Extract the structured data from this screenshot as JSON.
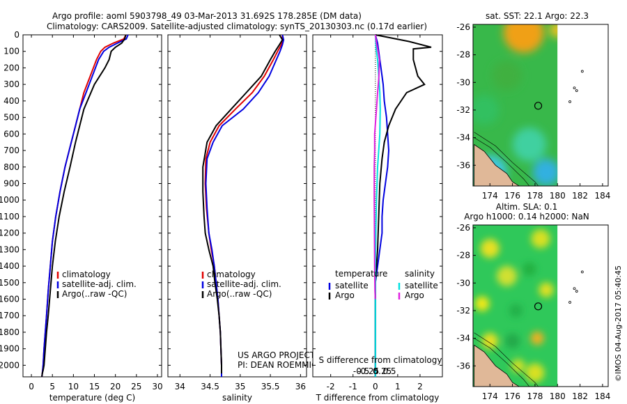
{
  "header": {
    "line1": "Argo profile: aoml 5903798_49 03-Mar-2013 31.692S 178.285E (DM data)",
    "line2": "Climatology: CARS2009. Satellite-adjusted climatology: synTS_20130303.nc (0.17d earlier)"
  },
  "colors": {
    "climatology": "#e00000",
    "satellite": "#0000e0",
    "argo": "#000000",
    "salinity_satellite": "#00e0e0",
    "salinity_argo": "#e020e0"
  },
  "chart_data": [
    {
      "type": "line",
      "name": "temperature-profile",
      "xlabel": "temperature (deg C)",
      "ylabel": "",
      "xlim": [
        -2,
        31
      ],
      "ylim": [
        2070,
        0
      ],
      "xticks": [
        "0",
        "5",
        "10",
        "15",
        "20",
        "25",
        "30"
      ],
      "xtick_values": [
        0,
        5,
        10,
        15,
        20,
        25,
        30
      ],
      "yticks": [
        "0",
        "100",
        "200",
        "300",
        "400",
        "500",
        "600",
        "700",
        "800",
        "900",
        "1000",
        "1100",
        "1200",
        "1300",
        "1400",
        "1500",
        "1600",
        "1700",
        "1800",
        "1900",
        "2000"
      ],
      "ytick_values": [
        0,
        100,
        200,
        300,
        400,
        500,
        600,
        700,
        800,
        900,
        1000,
        1100,
        1200,
        1300,
        1400,
        1500,
        1600,
        1700,
        1800,
        1900,
        2000
      ],
      "legend": [
        "climatology",
        "satellite-adj. clim.",
        "Argo(..raw -QC)"
      ],
      "legend_position": "lower-center",
      "series": [
        {
          "name": "climatology",
          "x": [
            22.5,
            22.0,
            19.5,
            17.5,
            16.5,
            15.5,
            14.0,
            12.5,
            11.5,
            10.5,
            9.5,
            8.0,
            6.8,
            5.8,
            5.0,
            4.5,
            4.0,
            3.6,
            3.3,
            3.0,
            2.8,
            2.6,
            2.5
          ],
          "y": [
            0,
            25,
            50,
            75,
            100,
            150,
            250,
            350,
            450,
            550,
            650,
            800,
            950,
            1100,
            1250,
            1400,
            1550,
            1700,
            1800,
            1900,
            2000,
            2050,
            2070
          ]
        },
        {
          "name": "satellite-adj. clim.",
          "x": [
            23.0,
            22.6,
            20.5,
            18.5,
            17.2,
            16.0,
            14.5,
            13.0,
            11.5,
            10.5,
            9.5,
            8.0,
            6.8,
            5.8,
            5.0,
            4.5,
            4.0,
            3.6,
            3.3,
            3.0,
            2.8,
            2.6,
            2.5
          ],
          "y": [
            0,
            25,
            50,
            75,
            100,
            150,
            250,
            350,
            450,
            550,
            650,
            800,
            950,
            1100,
            1250,
            1400,
            1550,
            1700,
            1800,
            1900,
            2000,
            2050,
            2070
          ]
        },
        {
          "name": "Argo(..raw -QC)",
          "x": [
            22.5,
            22.2,
            21.5,
            20.0,
            19.0,
            18.5,
            17.5,
            15.0,
            12.5,
            11.5,
            10.5,
            9.2,
            7.8,
            6.6,
            5.7,
            5.0,
            4.5,
            4.0,
            3.6,
            3.3,
            3.0,
            2.8,
            2.6,
            2.5
          ],
          "y": [
            0,
            25,
            50,
            75,
            100,
            150,
            200,
            300,
            450,
            550,
            650,
            800,
            950,
            1100,
            1250,
            1400,
            1550,
            1700,
            1800,
            1900,
            2000,
            2030,
            2050,
            2070
          ]
        }
      ]
    },
    {
      "type": "line",
      "name": "salinity-profile",
      "xlabel": "salinity",
      "ylabel": "",
      "xlim": [
        33.8,
        36.1
      ],
      "ylim": [
        2070,
        0
      ],
      "xticks": [
        "34",
        "34.5",
        "35",
        "35.5",
        "36"
      ],
      "xtick_values": [
        34,
        34.5,
        35,
        35.5,
        36
      ],
      "legend": [
        "climatology",
        "satellite-adj. clim.",
        "Argo(..raw -QC)"
      ],
      "legend_position": "lower-center",
      "annotation": [
        "US ARGO PROJECT",
        "PI: DEAN ROEMMICH"
      ],
      "series": [
        {
          "name": "climatology",
          "x": [
            35.7,
            35.7,
            35.68,
            35.62,
            35.55,
            35.4,
            35.2,
            34.92,
            34.65,
            34.5,
            34.43,
            34.42,
            34.44,
            34.48,
            34.52,
            34.57,
            34.6,
            34.63,
            34.65,
            34.67,
            34.68,
            34.69,
            34.69,
            34.69
          ],
          "y": [
            0,
            30,
            60,
            100,
            150,
            250,
            350,
            450,
            550,
            650,
            750,
            900,
            1050,
            1200,
            1300,
            1400,
            1500,
            1600,
            1700,
            1800,
            1900,
            2000,
            2050,
            2070
          ]
        },
        {
          "name": "satellite-adj. clim.",
          "x": [
            35.7,
            35.72,
            35.7,
            35.66,
            35.6,
            35.48,
            35.3,
            35.05,
            34.7,
            34.55,
            34.45,
            34.43,
            34.45,
            34.48,
            34.53,
            34.57,
            34.6,
            34.63,
            34.65,
            34.67,
            34.68,
            34.69,
            34.69,
            34.69
          ],
          "y": [
            0,
            30,
            60,
            100,
            150,
            250,
            350,
            450,
            550,
            650,
            750,
            900,
            1050,
            1200,
            1300,
            1400,
            1500,
            1600,
            1700,
            1800,
            1900,
            2000,
            2050,
            2070
          ]
        },
        {
          "name": "Argo(..raw -QC)",
          "x": [
            35.65,
            35.7,
            35.65,
            35.58,
            35.5,
            35.35,
            35.1,
            34.85,
            34.6,
            34.45,
            34.38,
            34.38,
            34.4,
            34.42,
            34.48,
            34.55,
            34.58,
            34.62,
            34.65,
            34.67,
            34.68,
            34.69,
            34.69
          ],
          "y": [
            0,
            30,
            60,
            100,
            150,
            250,
            350,
            450,
            550,
            650,
            800,
            950,
            1100,
            1200,
            1300,
            1400,
            1500,
            1600,
            1700,
            1800,
            1900,
            2000,
            2050
          ]
        }
      ]
    },
    {
      "type": "line",
      "name": "difference-profile",
      "xlabel": "T difference from climatology",
      "xlabel_top": "S difference from climatology",
      "xlim": [
        -2.8,
        3.0
      ],
      "ylim": [
        2070,
        0
      ],
      "xticks": [
        "-2",
        "-1",
        "0",
        "1",
        "2"
      ],
      "xtick_values": [
        -2,
        -1,
        0,
        1,
        2
      ],
      "xticks_top": [
        "-0.5",
        "-0.25",
        "0",
        "0.25",
        "0.5"
      ],
      "xtick_top_values": [
        -0.5,
        -0.25,
        0,
        0.25,
        0.5
      ],
      "legend_temperature_title": "temperature",
      "legend_temperature": [
        "satellite",
        "Argo"
      ],
      "legend_salinity_title": "salinity",
      "legend_salinity": [
        "satellite",
        "Argo"
      ],
      "legend_position": "lower-center",
      "series": [
        {
          "name": "temperature satellite",
          "x": [
            0.0,
            0.1,
            0.15,
            0.25,
            0.35,
            0.4,
            0.5,
            0.55,
            0.6,
            0.55,
            0.45,
            0.35,
            0.3,
            0.3,
            0.2,
            0.1,
            0.0,
            0.0,
            0.0,
            0.0
          ],
          "y": [
            0,
            50,
            100,
            200,
            300,
            400,
            500,
            600,
            700,
            800,
            900,
            1000,
            1100,
            1200,
            1300,
            1400,
            1500,
            1700,
            1900,
            2070
          ]
        },
        {
          "name": "temperature Argo",
          "x": [
            0.0,
            1.5,
            2.5,
            1.7,
            1.7,
            1.9,
            2.2,
            1.4,
            0.9,
            0.6,
            0.4,
            0.3,
            0.2,
            0.15,
            0.1,
            0.0,
            0.0,
            0.0,
            0.0
          ],
          "y": [
            0,
            40,
            75,
            85,
            150,
            250,
            300,
            350,
            450,
            550,
            650,
            750,
            900,
            1100,
            1300,
            1500,
            1700,
            1900,
            2070
          ]
        },
        {
          "name": "salinity satellite",
          "x": [
            0.0,
            0.02,
            0.05,
            0.1,
            0.15,
            0.2,
            0.22,
            0.2,
            0.1,
            0.05,
            0.02,
            0.0,
            0.0,
            0.0,
            0.0
          ],
          "y": [
            0,
            50,
            100,
            150,
            250,
            350,
            450,
            600,
            800,
            1000,
            1200,
            1400,
            1600,
            1800,
            2070
          ]
        },
        {
          "name": "salinity Argo",
          "x": [
            0.0,
            0.05,
            0.12,
            0.18,
            0.16,
            0.1,
            0.05,
            -0.03,
            -0.03,
            -0.05,
            -0.05,
            -0.04,
            -0.03,
            -0.02,
            0.0
          ],
          "y": [
            0,
            50,
            100,
            150,
            250,
            350,
            450,
            600,
            700,
            800,
            1000,
            1200,
            1400,
            1550,
            1600
          ]
        }
      ]
    },
    {
      "type": "heatmap",
      "name": "sst-map",
      "title": "sat. SST: 22.1  Argo: 22.3",
      "xlim": [
        172.5,
        184.5
      ],
      "ylim": [
        -37.5,
        -25.8
      ],
      "xticks": [
        "174",
        "176",
        "178",
        "180",
        "182",
        "184"
      ],
      "xtick_values": [
        174,
        176,
        178,
        180,
        182,
        184
      ],
      "yticks": [
        "-26",
        "-28",
        "-30",
        "-32",
        "-34",
        "-36"
      ],
      "ytick_values": [
        -26,
        -28,
        -30,
        -32,
        -34,
        -36
      ],
      "profile_location": {
        "lon": 178.285,
        "lat": -31.692
      },
      "data_extent_lon": [
        172.5,
        180
      ],
      "blobs": [
        {
          "lon": 177,
          "lat": -26.4,
          "r": 3.0,
          "color": "#f0a018"
        },
        {
          "lon": 180,
          "lat": -26.2,
          "r": 1.2,
          "color": "#e8c020"
        },
        {
          "lon": 175.5,
          "lat": -29.5,
          "r": 2.2,
          "color": "#40b040"
        },
        {
          "lon": 173.5,
          "lat": -32,
          "r": 2.2,
          "color": "#30c060"
        },
        {
          "lon": 177.5,
          "lat": -34.5,
          "r": 2.5,
          "color": "#40d0a0"
        },
        {
          "lon": 174,
          "lat": -36.5,
          "r": 2.5,
          "color": "#40c8e0"
        },
        {
          "lon": 179,
          "lat": -36.5,
          "r": 2.0,
          "color": "#30b0e0"
        }
      ]
    },
    {
      "type": "heatmap",
      "name": "sla-map",
      "title": "Altim. SLA: 0.1",
      "subtitle": "Argo h1000: 0.14  h2000: NaN",
      "xlim": [
        172.5,
        184.5
      ],
      "ylim": [
        -37.5,
        -25.8
      ],
      "xticks": [
        "174",
        "176",
        "178",
        "180",
        "182",
        "184"
      ],
      "xtick_values": [
        174,
        176,
        178,
        180,
        182,
        184
      ],
      "yticks": [
        "-26",
        "-28",
        "-30",
        "-32",
        "-34",
        "-36"
      ],
      "ytick_values": [
        -26,
        -28,
        -30,
        -32,
        -34,
        -36
      ],
      "profile_location": {
        "lon": 178.285,
        "lat": -31.692
      },
      "data_extent_lon": [
        172.5,
        180
      ],
      "blobs": [
        {
          "lon": 174,
          "lat": -27.5,
          "r": 1.4,
          "color": "#e8e020"
        },
        {
          "lon": 178.5,
          "lat": -26.8,
          "r": 1.4,
          "color": "#d8e020"
        },
        {
          "lon": 175.5,
          "lat": -29.5,
          "r": 1.5,
          "color": "#d0e030"
        },
        {
          "lon": 177.5,
          "lat": -29,
          "r": 1.0,
          "color": "#20b040"
        },
        {
          "lon": 179,
          "lat": -30.5,
          "r": 1.1,
          "color": "#e0e020"
        },
        {
          "lon": 173.3,
          "lat": -31.5,
          "r": 1.1,
          "color": "#f0e818"
        },
        {
          "lon": 176.3,
          "lat": -32,
          "r": 1.0,
          "color": "#20b048"
        },
        {
          "lon": 174,
          "lat": -34.2,
          "r": 1.2,
          "color": "#e8e020"
        },
        {
          "lon": 176,
          "lat": -34.2,
          "r": 1.1,
          "color": "#20a848"
        },
        {
          "lon": 178.2,
          "lat": -34,
          "r": 1.0,
          "color": "#f0b020"
        },
        {
          "lon": 176.5,
          "lat": -36,
          "r": 1.0,
          "color": "#d0e028"
        },
        {
          "lon": 178,
          "lat": -36.5,
          "r": 1.4,
          "color": "#d8e020"
        }
      ]
    }
  ],
  "watermark": "©IMOS 04-Aug-2017 05:40:45"
}
